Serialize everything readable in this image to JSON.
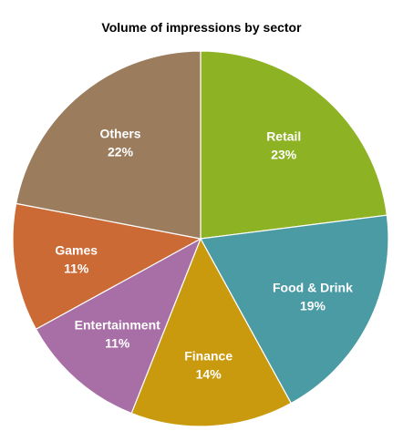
{
  "chart_data": {
    "type": "pie",
    "title": "Volume of impressions by sector",
    "categories": [
      "Retail",
      "Food & Drink",
      "Finance",
      "Entertainment",
      "Games",
      "Others"
    ],
    "values": [
      23,
      19,
      14,
      11,
      11,
      22
    ],
    "value_labels": [
      "23%",
      "19%",
      "14%",
      "11%",
      "11%",
      "22%"
    ],
    "colors": [
      "#8db224",
      "#4b9ba5",
      "#c99a0e",
      "#a86ea6",
      "#cc6a36",
      "#9b7d5e"
    ],
    "start_angle": "12 o'clock",
    "direction": "clockwise",
    "legend": "none",
    "labels": "inside slices"
  }
}
